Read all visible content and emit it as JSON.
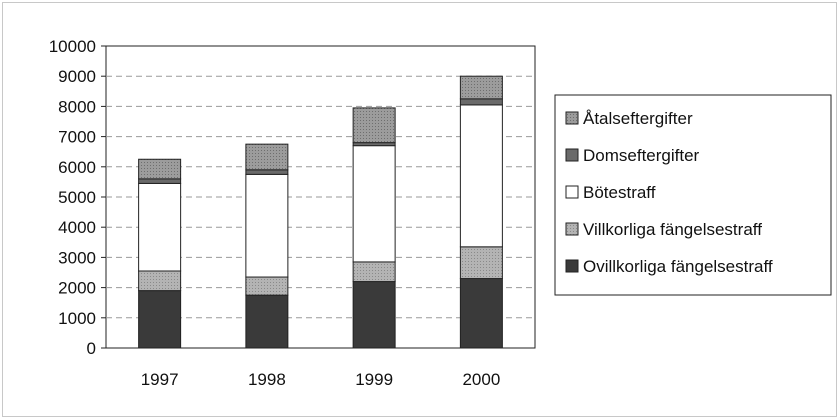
{
  "chart_data": {
    "type": "bar",
    "stacked": true,
    "categories": [
      "1997",
      "1998",
      "1999",
      "2000"
    ],
    "ylim": [
      0,
      10000
    ],
    "yticks": [
      "0",
      "1000",
      "2000",
      "3000",
      "4000",
      "5000",
      "6000",
      "7000",
      "8000",
      "9000",
      "10000"
    ],
    "grid": "dashed-horizontal",
    "legend_position": "right",
    "series": [
      {
        "name": "Ovillkorliga fängelsestraff",
        "color": "#3a3a3a",
        "values": [
          1900,
          1750,
          2200,
          2300
        ]
      },
      {
        "name": "Villkorliga fängelsestraff",
        "color": "#a8a8a8",
        "values": [
          650,
          600,
          650,
          1050
        ]
      },
      {
        "name": "Bötestraff",
        "color": "#ffffff",
        "values": [
          2900,
          3400,
          3850,
          4700
        ]
      },
      {
        "name": "Domseftergifter",
        "color": "#777777",
        "values": [
          150,
          150,
          100,
          200
        ]
      },
      {
        "name": "Åtalseftergifter",
        "color": "#989898",
        "values": [
          650,
          850,
          1150,
          750
        ]
      }
    ],
    "title": "",
    "xlabel": "",
    "ylabel": ""
  }
}
